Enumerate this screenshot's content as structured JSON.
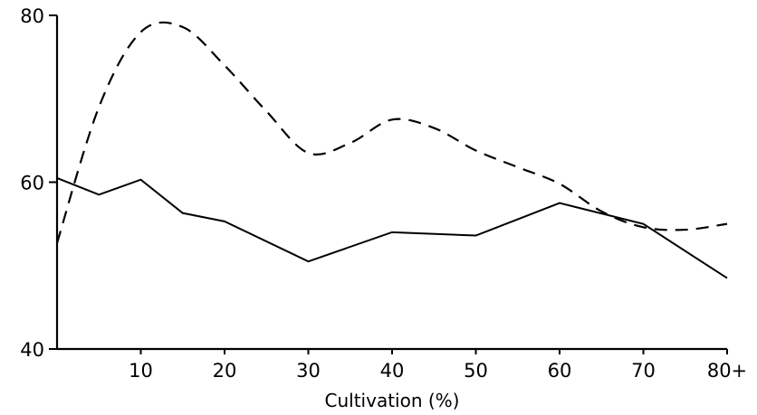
{
  "chart_data": {
    "type": "line",
    "xlabel": "Cultivation (%)",
    "ylabel": "",
    "xlim": [
      0,
      80
    ],
    "ylim": [
      40,
      80
    ],
    "x_ticks": [
      10,
      20,
      30,
      40,
      50,
      60,
      70,
      80
    ],
    "x_tick_labels": [
      "10",
      "20",
      "30",
      "40",
      "50",
      "60",
      "70",
      "80+"
    ],
    "y_ticks": [
      40,
      60,
      80
    ],
    "y_tick_labels": [
      "40",
      "60",
      "80"
    ],
    "grid": false,
    "series": [
      {
        "style": "solid",
        "x": [
          0,
          5,
          10,
          15,
          20,
          30,
          40,
          50,
          60,
          70,
          80
        ],
        "y": [
          60.5,
          58.5,
          60.3,
          56.3,
          55.3,
          50.5,
          54,
          53.6,
          57.5,
          55,
          48.5
        ]
      },
      {
        "style": "dashed",
        "x": [
          0,
          5,
          10,
          15,
          20,
          25,
          30,
          35,
          40,
          45,
          50,
          55,
          60,
          65,
          70,
          75,
          80
        ],
        "y": [
          52.7,
          69,
          78,
          78.6,
          74,
          68.5,
          63.5,
          64.7,
          67.5,
          66.5,
          63.8,
          61.8,
          59.8,
          56.5,
          54.6,
          54.3,
          55
        ]
      }
    ]
  }
}
